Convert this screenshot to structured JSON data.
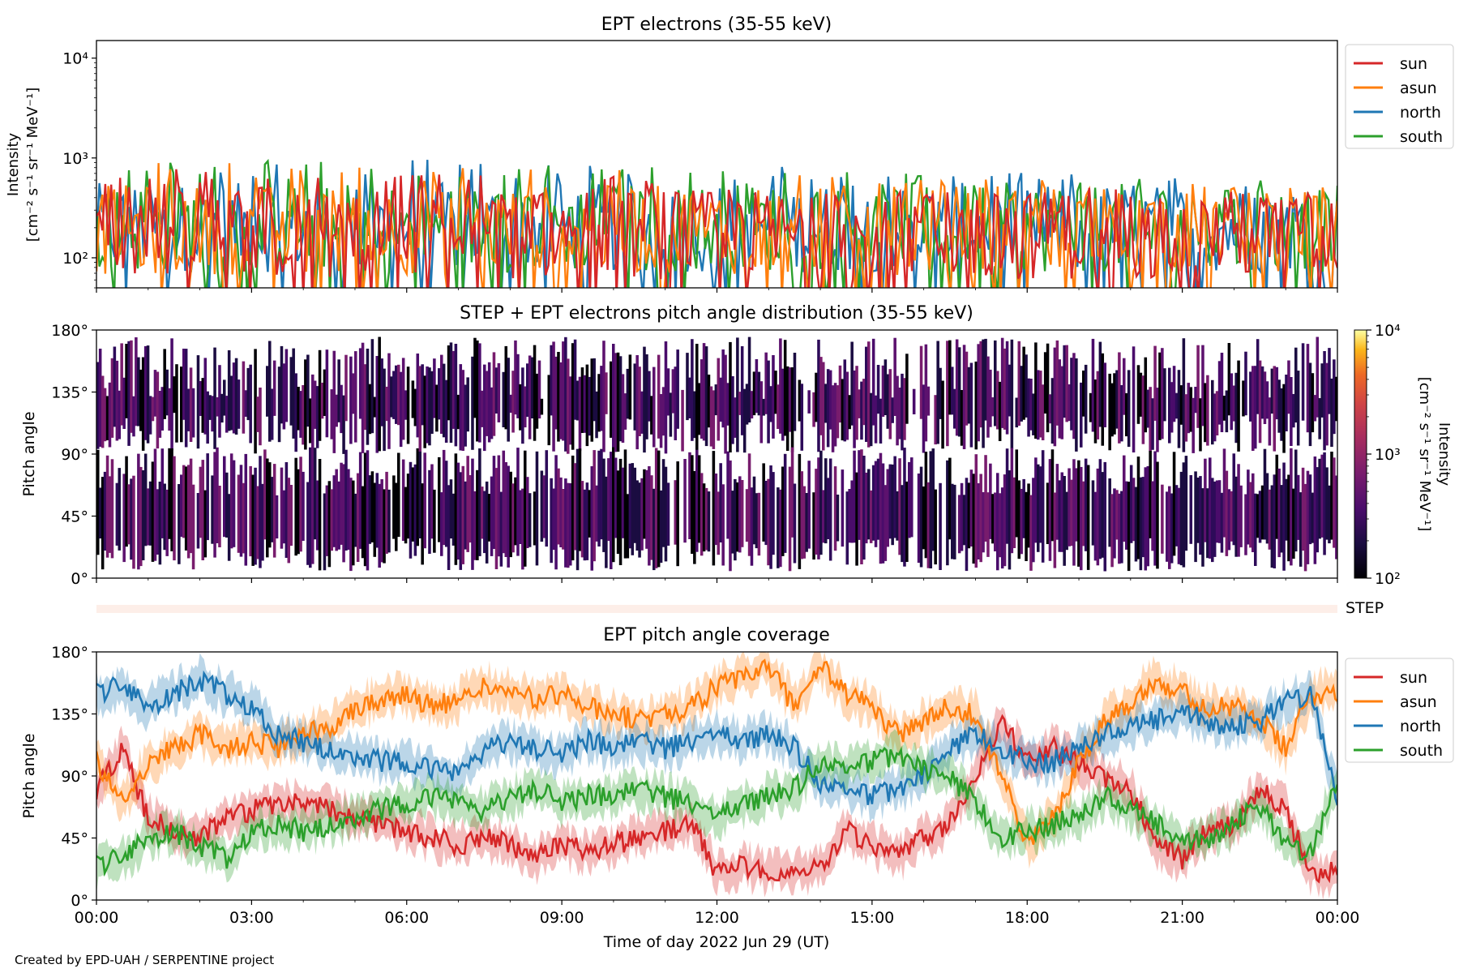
{
  "footer": "Created by EPD-UAH / SERPENTINE project",
  "colors": {
    "sun": "#d62728",
    "asun": "#ff7f0e",
    "north": "#1f77b4",
    "south": "#2ca02c",
    "step_bar": "#fdeee8",
    "colormap": "inferno"
  },
  "chart_data": [
    {
      "type": "line",
      "title": "EPT electrons (35-55 keV)",
      "ylabel": [
        "Intensity",
        "[cm⁻² s⁻¹ sr⁻¹ MeV⁻¹]"
      ],
      "yscale": "log",
      "ylim": [
        50,
        15000
      ],
      "yticks": [
        {
          "value": 100,
          "label": "10²"
        },
        {
          "value": 1000,
          "label": "10³"
        },
        {
          "value": 10000,
          "label": "10⁴"
        }
      ],
      "xlim_hours": [
        0,
        24
      ],
      "legend_placement": "outside-top-right",
      "series": [
        {
          "name": "north",
          "color_key": "north",
          "typical": 200,
          "peak_start": 1100,
          "peak_end": 600
        },
        {
          "name": "south",
          "color_key": "south",
          "typical": 200,
          "peak_start": 1000,
          "peak_end": 600
        },
        {
          "name": "asun",
          "color_key": "asun",
          "typical": 190,
          "peak_start": 1000,
          "peak_end": 500
        },
        {
          "name": "sun",
          "color_key": "sun",
          "typical": 170,
          "peak_start": 800,
          "peak_end": 450
        }
      ],
      "legend_order": [
        "sun",
        "asun",
        "north",
        "south"
      ]
    },
    {
      "type": "heatmap",
      "title": "STEP + EPT electrons pitch angle distribution (35-55 keV)",
      "ylabel": "Pitch angle",
      "ylim": [
        0,
        180
      ],
      "yticks": [
        {
          "value": 0,
          "label": "0°"
        },
        {
          "value": 45,
          "label": "45°"
        },
        {
          "value": 90,
          "label": "90°"
        },
        {
          "value": 135,
          "label": "135°"
        },
        {
          "value": 180,
          "label": "180°"
        }
      ],
      "xlim_hours": [
        0,
        24
      ],
      "colorbar": {
        "scale": "log",
        "range": [
          100,
          10000
        ],
        "ticks": [
          {
            "value": 100,
            "label": "10²"
          },
          {
            "value": 1000,
            "label": "10³"
          },
          {
            "value": 10000,
            "label": "10⁴"
          }
        ],
        "label": [
          "Intensity",
          "[cm⁻² s⁻¹ sr⁻¹ MeV⁻¹]"
        ]
      },
      "typical_intensity": 250
    },
    {
      "type": "bar",
      "label": "STEP",
      "xlim_hours": [
        0,
        24
      ]
    },
    {
      "type": "line",
      "title": "EPT pitch angle coverage",
      "ylabel": "Pitch angle",
      "ylim": [
        0,
        180
      ],
      "yticks": [
        {
          "value": 0,
          "label": "0°"
        },
        {
          "value": 45,
          "label": "45°"
        },
        {
          "value": 90,
          "label": "90°"
        },
        {
          "value": 135,
          "label": "135°"
        },
        {
          "value": 180,
          "label": "180°"
        }
      ],
      "xlabel": "Time of day 2022 Jun 29 (UT)",
      "xticks": [
        "00:00",
        "03:00",
        "06:00",
        "09:00",
        "12:00",
        "15:00",
        "18:00",
        "21:00",
        "00:00"
      ],
      "xlim_hours": [
        0,
        24
      ],
      "legend_placement": "outside-top-right",
      "x_hours": [
        0,
        0.5,
        1,
        1.5,
        2,
        2.5,
        3,
        3.5,
        4,
        4.5,
        5,
        5.5,
        6,
        6.5,
        7,
        7.5,
        8,
        8.5,
        9,
        9.5,
        10,
        10.5,
        11,
        11.5,
        12,
        12.5,
        13,
        13.5,
        14,
        14.5,
        15,
        15.5,
        16,
        16.5,
        17,
        17.5,
        18,
        18.5,
        19,
        19.5,
        20,
        20.5,
        21,
        21.5,
        22,
        22.5,
        23,
        23.5,
        24
      ],
      "series": [
        {
          "name": "sun",
          "color_key": "sun",
          "values": [
            80,
            110,
            60,
            50,
            45,
            60,
            65,
            70,
            70,
            65,
            60,
            55,
            50,
            45,
            40,
            45,
            40,
            30,
            40,
            35,
            40,
            45,
            50,
            55,
            20,
            25,
            20,
            20,
            25,
            50,
            40,
            30,
            45,
            55,
            90,
            130,
            100,
            110,
            100,
            90,
            80,
            40,
            30,
            50,
            55,
            80,
            65,
            20,
            20
          ]
        },
        {
          "name": "asun",
          "color_key": "asun",
          "values": [
            100,
            70,
            100,
            110,
            120,
            110,
            115,
            110,
            120,
            125,
            140,
            145,
            150,
            140,
            145,
            155,
            150,
            145,
            150,
            140,
            135,
            130,
            135,
            140,
            155,
            160,
            170,
            140,
            170,
            150,
            140,
            120,
            130,
            140,
            135,
            90,
            40,
            60,
            100,
            130,
            145,
            160,
            150,
            140,
            140,
            130,
            110,
            150,
            150
          ]
        },
        {
          "name": "north",
          "color_key": "north",
          "values": [
            150,
            155,
            140,
            150,
            160,
            150,
            140,
            120,
            115,
            110,
            105,
            100,
            100,
            95,
            90,
            110,
            115,
            110,
            105,
            115,
            110,
            115,
            110,
            115,
            120,
            115,
            120,
            110,
            85,
            80,
            75,
            80,
            90,
            110,
            120,
            110,
            100,
            100,
            110,
            120,
            125,
            130,
            135,
            130,
            125,
            130,
            145,
            150,
            75
          ]
        },
        {
          "name": "south",
          "color_key": "south",
          "values": [
            25,
            30,
            45,
            50,
            40,
            30,
            50,
            55,
            50,
            55,
            60,
            65,
            70,
            75,
            70,
            65,
            75,
            80,
            70,
            75,
            75,
            80,
            75,
            70,
            60,
            70,
            75,
            80,
            100,
            95,
            100,
            105,
            95,
            90,
            70,
            45,
            50,
            55,
            60,
            75,
            65,
            55,
            40,
            45,
            55,
            70,
            40,
            35,
            90
          ]
        }
      ],
      "legend_order": [
        "sun",
        "asun",
        "north",
        "south"
      ]
    }
  ]
}
